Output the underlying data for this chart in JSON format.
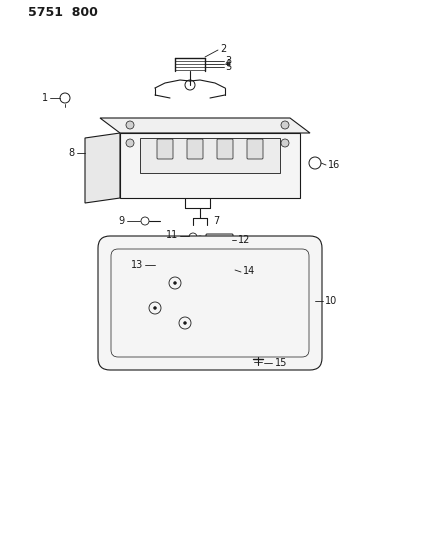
{
  "title": "5751  800",
  "bg_color": "#ffffff",
  "fig_width": 4.28,
  "fig_height": 5.33,
  "dpi": 100,
  "lc": "#1a1a1a",
  "lw": 0.8
}
